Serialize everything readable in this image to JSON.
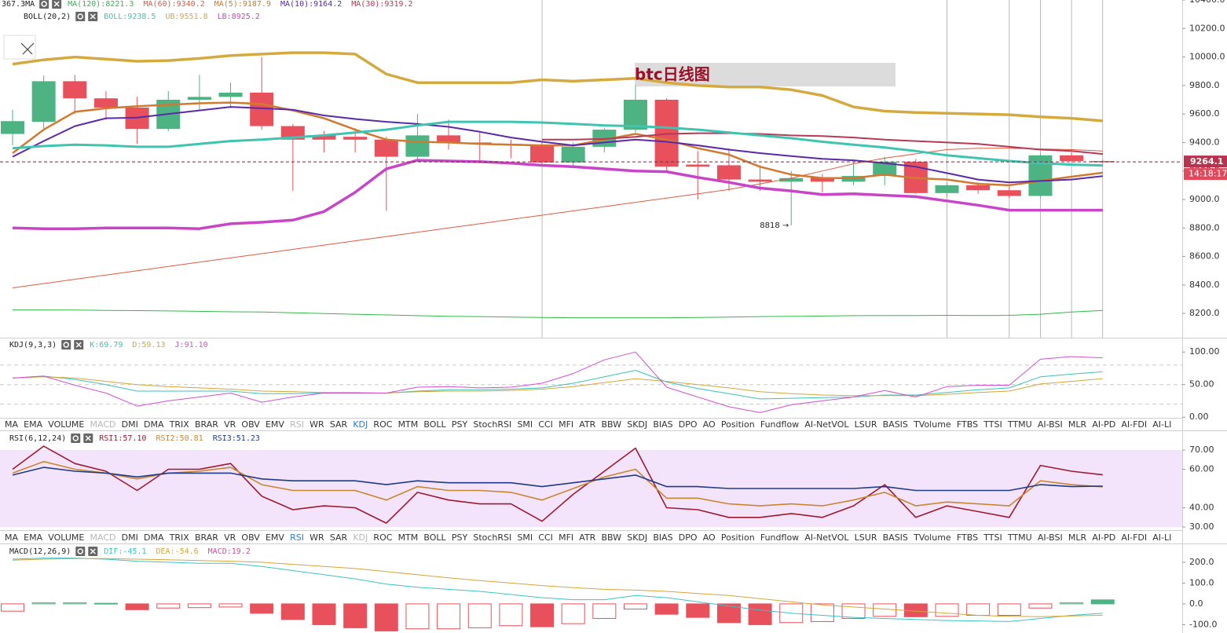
{
  "chart_data": [
    {
      "type": "candlestick",
      "title": "btc日线图",
      "legend_titles": [
        "367.3MA",
        "BOLL(20,2)"
      ],
      "last_price_label": "9264.1",
      "countdown": "14:18:17",
      "min_low_label": "8818 →",
      "up_color": "#4db383",
      "down_color": "#e8505b",
      "price_label_color": "#b8344e",
      "countdown_color": "#e2485c",
      "ylim": [
        8030,
        10400
      ],
      "yticks": [
        {
          "value": 8200,
          "label": "8200.0"
        },
        {
          "value": 8400,
          "label": "8400.0"
        },
        {
          "value": 8600,
          "label": "8600.0"
        },
        {
          "value": 8800,
          "label": "8800.0"
        },
        {
          "value": 9000,
          "label": "9000.0"
        },
        {
          "value": 9200,
          "label": "9200.0"
        },
        {
          "value": 9400,
          "label": "9400.0"
        },
        {
          "value": 9600,
          "label": "9600.0"
        },
        {
          "value": 9800,
          "label": "9800.0"
        },
        {
          "value": 10000,
          "label": "10000.0"
        },
        {
          "value": 10200,
          "label": "10200.0"
        },
        {
          "value": 10400,
          "label": "10400.0"
        }
      ],
      "open": [
        9460,
        9545,
        9830,
        9710,
        9645,
        9495,
        9700,
        9720,
        9750,
        9515,
        9450,
        9440,
        9420,
        9300,
        9450,
        9400,
        9390,
        9380,
        9260,
        9370,
        9490,
        9700,
        9245,
        9240,
        9140,
        9125,
        9155,
        9125,
        9165,
        9265,
        9045,
        9100,
        9065,
        9025,
        9310,
        9270
      ],
      "high": [
        9630,
        9870,
        9875,
        9760,
        9720,
        9760,
        9875,
        9820,
        10000,
        9530,
        9480,
        9500,
        9440,
        9600,
        9560,
        9480,
        9420,
        9400,
        9400,
        9500,
        9800,
        9710,
        9340,
        9360,
        9240,
        9200,
        9180,
        9260,
        9300,
        9285,
        9120,
        9120,
        9090,
        9320,
        9330,
        9280
      ],
      "low": [
        9380,
        9500,
        9600,
        9560,
        9390,
        9480,
        9620,
        9640,
        9490,
        9060,
        9330,
        9330,
        8920,
        9280,
        9350,
        9270,
        9290,
        9250,
        9240,
        9330,
        9470,
        9200,
        9000,
        9060,
        9060,
        8818,
        9050,
        9100,
        9100,
        9040,
        9020,
        9040,
        9010,
        9010,
        9260,
        9255
      ],
      "close": [
        9550,
        9830,
        9710,
        9645,
        9495,
        9700,
        9720,
        9750,
        9515,
        9420,
        9420,
        9420,
        9300,
        9450,
        9395,
        9390,
        9380,
        9260,
        9370,
        9490,
        9700,
        9230,
        9230,
        9140,
        9125,
        9150,
        9125,
        9165,
        9265,
        9045,
        9100,
        9065,
        9025,
        9310,
        9270,
        9264.1
      ],
      "series": [
        {
          "name": "MA(120):8221.3",
          "color": "#33b84a",
          "width": 1,
          "values": [
            8225,
            8225,
            8224,
            8222,
            8220,
            8218,
            8215,
            8212,
            8210,
            8205,
            8200,
            8195,
            8190,
            8185,
            8180,
            8178,
            8175,
            8172,
            8170,
            8170,
            8170,
            8170,
            8172,
            8175,
            8178,
            8180,
            8182,
            8185,
            8186,
            8186,
            8187,
            8186,
            8187,
            8195,
            8210,
            8221.3
          ]
        },
        {
          "name": "MA(60):9340.2",
          "color": "#e05a40",
          "width": 1,
          "values": [
            8380,
            8410,
            8440,
            8470,
            8500,
            8530,
            8560,
            8590,
            8620,
            8650,
            8680,
            8710,
            8740,
            8770,
            8800,
            8830,
            8860,
            8890,
            8920,
            8950,
            8980,
            9010,
            9040,
            9070,
            9110,
            9150,
            9200,
            9250,
            9290,
            9320,
            9350,
            9360,
            9360,
            9355,
            9350,
            9340.2
          ]
        },
        {
          "name": "MA(5):9187.9",
          "color": "#cf7a30",
          "width": 2.5,
          "values": [
            9325,
            9490,
            9615,
            9640,
            9655,
            9665,
            9675,
            9680,
            9670,
            9625,
            9570,
            9490,
            9420,
            9405,
            9400,
            9390,
            9385,
            9380,
            9380,
            9420,
            9460,
            9420,
            9360,
            9315,
            9230,
            9175,
            9150,
            9150,
            9175,
            9150,
            9140,
            9110,
            9100,
            9130,
            9160,
            9187.9
          ]
        },
        {
          "name": "MA(10):9164.2",
          "color": "#5b2aa8",
          "width": 2,
          "values": [
            9300,
            9410,
            9515,
            9570,
            9575,
            9600,
            9625,
            9650,
            9640,
            9630,
            9590,
            9565,
            9545,
            9530,
            9510,
            9475,
            9435,
            9405,
            9380,
            9400,
            9420,
            9405,
            9380,
            9350,
            9325,
            9305,
            9285,
            9275,
            9255,
            9230,
            9185,
            9140,
            9120,
            9130,
            9140,
            9164.2
          ]
        },
        {
          "name": "MA(30):9319.2",
          "color": "#b53a55",
          "width": 2,
          "values": [
            null,
            null,
            null,
            null,
            null,
            null,
            null,
            null,
            null,
            null,
            null,
            null,
            null,
            null,
            null,
            null,
            null,
            9420,
            9420,
            9425,
            9440,
            9460,
            9465,
            9465,
            9460,
            9450,
            9445,
            9435,
            9420,
            9410,
            9400,
            9390,
            9370,
            9350,
            9340,
            9319.2
          ]
        },
        {
          "name": "BOLL:9238.5",
          "color": "#3fc4b2",
          "width": 3,
          "values": [
            9360,
            9375,
            9385,
            9380,
            9370,
            9370,
            9390,
            9410,
            9420,
            9435,
            9450,
            9470,
            9490,
            9520,
            9545,
            9545,
            9545,
            9540,
            9530,
            9520,
            9515,
            9505,
            9490,
            9470,
            9450,
            9430,
            9405,
            9385,
            9365,
            9340,
            9310,
            9290,
            9270,
            9255,
            9245,
            9238.5
          ]
        },
        {
          "name": "UB:9551.8",
          "color": "#d4aa3f",
          "width": 3.5,
          "values": [
            9950,
            9980,
            10000,
            9985,
            9970,
            9975,
            9990,
            10010,
            10020,
            10030,
            10030,
            10020,
            9880,
            9820,
            9820,
            9820,
            9820,
            9840,
            9830,
            9840,
            9850,
            9820,
            9800,
            9790,
            9790,
            9770,
            9730,
            9650,
            9620,
            9610,
            9605,
            9600,
            9595,
            9580,
            9570,
            9551.8
          ]
        },
        {
          "name": "LB:8925.2",
          "color": "#c844c8",
          "width": 3.5,
          "values": [
            8800,
            8795,
            8795,
            8800,
            8800,
            8800,
            8795,
            8830,
            8840,
            8855,
            8915,
            9050,
            9215,
            9275,
            9270,
            9265,
            9255,
            9240,
            9230,
            9215,
            9200,
            9195,
            9155,
            9120,
            9080,
            9060,
            9035,
            9040,
            9030,
            9020,
            8990,
            8960,
            8925,
            8925,
            8925,
            8925.2
          ]
        }
      ]
    },
    {
      "type": "line",
      "legend_title": "KDJ(9,3,3)",
      "ylim": [
        -1,
        122
      ],
      "yticks": [
        {
          "value": 0,
          "label": "0.00"
        },
        {
          "value": 50,
          "label": "50.00"
        },
        {
          "value": 100,
          "label": "100.00"
        }
      ],
      "reference_lines": [
        20,
        50,
        80
      ],
      "reference_color": "#c8c8c8",
      "series": [
        {
          "name": "K:69.79",
          "color": "#3cc2b8",
          "width": 1,
          "values": [
            60,
            63,
            58,
            50,
            40,
            40,
            40,
            40,
            36,
            36,
            37,
            37,
            37,
            40,
            42,
            42,
            43,
            45,
            52,
            62,
            72,
            54,
            44,
            36,
            28,
            29,
            30,
            31,
            34,
            34,
            38,
            42,
            45,
            62,
            66,
            69.79
          ]
        },
        {
          "name": "D:59.13",
          "color": "#d4a53a",
          "width": 1,
          "values": [
            60,
            62,
            60,
            55,
            50,
            47,
            45,
            43,
            40,
            39,
            38,
            38,
            37,
            39,
            40,
            40,
            41,
            43,
            47,
            53,
            59,
            55,
            50,
            45,
            39,
            36,
            34,
            33,
            33,
            33,
            35,
            38,
            40,
            51,
            55,
            59.13
          ]
        },
        {
          "name": "J:91.10",
          "color": "#d050d0",
          "width": 1,
          "values": [
            60,
            63,
            49,
            37,
            17,
            25,
            31,
            37,
            23,
            31,
            37,
            37,
            37,
            46,
            47,
            45,
            46,
            52,
            67,
            88,
            100,
            46,
            31,
            16,
            7,
            19,
            25,
            31,
            41,
            31,
            47,
            49,
            49,
            89,
            93,
            91.1
          ]
        }
      ]
    },
    {
      "type": "line",
      "legend_title": "RSI(6,12,24)",
      "ylim": [
        29.6,
        79.4
      ],
      "yticks": [
        {
          "value": 30,
          "label": "30.00"
        },
        {
          "value": 40,
          "label": "40.00"
        },
        {
          "value": 60,
          "label": "60.00"
        },
        {
          "value": 70,
          "label": "70.00"
        }
      ],
      "band": [
        30,
        70
      ],
      "band_color": "#f3e4fb",
      "series": [
        {
          "name": "RSI1:57.10",
          "color": "#a0182e",
          "width": 1.6,
          "values": [
            60,
            72,
            63,
            59,
            49,
            60,
            60,
            63,
            46,
            39,
            41,
            40,
            32,
            48,
            44,
            42,
            42,
            33,
            47,
            59,
            71,
            40,
            39,
            35,
            35,
            37,
            35,
            41,
            52,
            35,
            41,
            38,
            35,
            62,
            59,
            57.1
          ]
        },
        {
          "name": "RSI2:50.81",
          "color": "#c8872e",
          "width": 1.6,
          "values": [
            58,
            64,
            60,
            58,
            55,
            58,
            59,
            61,
            52,
            49,
            49,
            49,
            44,
            51,
            49,
            49,
            48,
            44,
            50,
            56,
            60,
            45,
            45,
            42,
            41,
            42,
            41,
            44,
            48,
            41,
            43,
            42,
            41,
            54,
            52,
            50.81
          ]
        },
        {
          "name": "RSI3:51.23",
          "color": "#1f3a8a",
          "width": 1.6,
          "values": [
            57,
            61,
            59,
            58,
            56,
            58,
            58,
            58,
            55,
            54,
            54,
            54,
            52,
            54,
            53,
            53,
            53,
            51,
            53,
            55,
            57,
            51,
            51,
            50,
            50,
            50,
            50,
            50,
            51,
            49,
            49,
            49,
            49,
            52,
            51,
            51.23
          ]
        }
      ]
    },
    {
      "type": "combo",
      "legend_title": "MACD(12,26,9)",
      "ylim": [
        -140,
        279
      ],
      "yticks": [
        {
          "value": -100,
          "label": "-100.0"
        },
        {
          "value": 0,
          "label": "0.0"
        },
        {
          "value": 100,
          "label": "100.0"
        },
        {
          "value": 200,
          "label": "200.0"
        }
      ],
      "series": [
        {
          "name": "DIF:-45.1",
          "kind": "line",
          "color": "#3cc2c8",
          "width": 1,
          "values": [
            215,
            220,
            220,
            215,
            205,
            200,
            195,
            195,
            180,
            160,
            140,
            120,
            95,
            80,
            70,
            60,
            45,
            30,
            20,
            20,
            40,
            30,
            10,
            -10,
            -30,
            -45,
            -55,
            -65,
            -70,
            -75,
            -80,
            -82,
            -85,
            -70,
            -55,
            -45.1
          ]
        },
        {
          "name": "DEA:-54.6",
          "kind": "line",
          "color": "#d4a53a",
          "width": 1,
          "values": [
            210,
            215,
            218,
            218,
            215,
            212,
            208,
            205,
            200,
            190,
            180,
            170,
            155,
            140,
            125,
            112,
            100,
            88,
            78,
            70,
            66,
            60,
            50,
            40,
            25,
            10,
            -5,
            -15,
            -25,
            -35,
            -45,
            -55,
            -60,
            -62,
            -58,
            -54.6
          ]
        },
        {
          "name": "MACD:19.2",
          "kind": "bar",
          "color": "#d050a0",
          "up_color": "#4db383",
          "down_color": "#e8505b",
          "width": 1,
          "values": [
            -35,
            5,
            5,
            3,
            -28,
            -20,
            -18,
            -15,
            -45,
            -75,
            -100,
            -115,
            -130,
            -120,
            -120,
            -115,
            -105,
            -110,
            -95,
            -70,
            -25,
            -50,
            -65,
            -90,
            -100,
            -90,
            -85,
            -70,
            -60,
            -62,
            -60,
            -55,
            -55,
            -20,
            5,
            19.2
          ]
        }
      ]
    }
  ],
  "indicator_tabs": [
    "MA",
    "EMA",
    "VOLUME",
    "MACD",
    "DMI",
    "DMA",
    "TRIX",
    "BRAR",
    "VR",
    "OBV",
    "EMV",
    "RSI",
    "WR",
    "SAR",
    "KDJ",
    "ROC",
    "MTM",
    "BOLL",
    "PSY",
    "StochRSI",
    "SMI",
    "CCI",
    "MFI",
    "ATR",
    "BBW",
    "SKDJ",
    "BIAS",
    "DPO",
    "AO",
    "Position",
    "Fundflow",
    "AI-NetVOL",
    "LSUR",
    "BASIS",
    "TVolume",
    "FTBS",
    "TTSI",
    "TTMU",
    "AI-BSI",
    "MLR",
    "AI-PD",
    "AI-FDI",
    "AI-LI"
  ]
}
